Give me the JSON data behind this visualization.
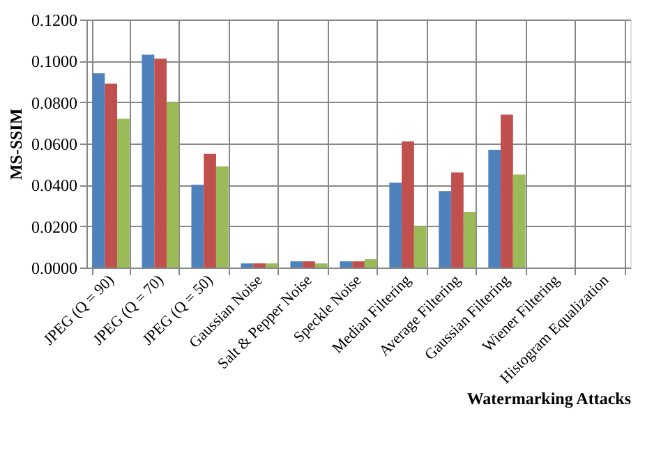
{
  "chart_data": {
    "type": "bar",
    "xlabel": "Watermarking Attacks",
    "ylabel": "MS-SSIM",
    "categories": [
      "JPEG (Q = 90)",
      "JPEG (Q = 70)",
      "JPEG (Q = 50)",
      "Gaussian Noise",
      "Salt & Pepper Noise",
      "Speckle Noise",
      "Median Filtering",
      "Average Filtering",
      "Gaussian Filtering",
      "Wiener Filtering",
      "Histogram Equalization"
    ],
    "series": [
      {
        "color": "#4f81bd",
        "values": [
          0.094,
          0.103,
          0.04,
          0.002,
          0.003,
          0.003,
          0.041,
          0.037,
          0.057,
          null,
          null
        ]
      },
      {
        "color": "#c0504d",
        "values": [
          0.089,
          0.101,
          0.055,
          0.002,
          0.003,
          0.003,
          0.061,
          0.046,
          0.074,
          null,
          null
        ]
      },
      {
        "color": "#9bbb59",
        "values": [
          0.072,
          0.08,
          0.049,
          0.002,
          0.002,
          0.004,
          0.02,
          0.027,
          0.045,
          null,
          null
        ]
      }
    ],
    "ylim": [
      0,
      0.12
    ],
    "yticks": [
      {
        "value": 0,
        "label": "0.0000"
      },
      {
        "value": 0.02,
        "label": "0.0200"
      },
      {
        "value": 0.04,
        "label": "0.0400"
      },
      {
        "value": 0.06,
        "label": "0.0600"
      },
      {
        "value": 0.08,
        "label": "0.0800"
      },
      {
        "value": 0.1,
        "label": "0.1000"
      },
      {
        "value": 0.12,
        "label": "0.1200"
      }
    ],
    "grid": true,
    "legend": false
  }
}
